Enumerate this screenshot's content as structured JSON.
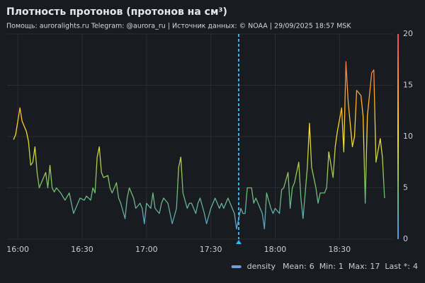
{
  "chart_data": {
    "type": "line",
    "title": "Плотность протонов (протонов на см³)",
    "subtitle": "Помощь: auroralights.ru Telegram: @aurora_ru | Источник данных:  © NOAA | 29/09/2025 18:57 MSK",
    "x": [
      "15:58",
      "15:59",
      "16:01",
      "16:02",
      "16:04",
      "16:05",
      "16:06",
      "16:07",
      "16:08",
      "16:09",
      "16:10",
      "16:11",
      "16:13",
      "16:14",
      "16:15",
      "16:16",
      "16:17",
      "16:18",
      "16:20",
      "16:22",
      "16:24",
      "16:25",
      "16:26",
      "16:28",
      "16:29",
      "16:31",
      "16:32",
      "16:34",
      "16:35",
      "16:36",
      "16:37",
      "16:38",
      "16:39",
      "16:40",
      "16:42",
      "16:43",
      "16:44",
      "16:46",
      "16:47",
      "16:48",
      "16:50",
      "16:51",
      "16:52",
      "16:54",
      "16:55",
      "16:57",
      "16:58",
      "16:59",
      "17:00",
      "17:02",
      "17:03",
      "17:04",
      "17:06",
      "17:07",
      "17:08",
      "17:10",
      "17:11",
      "17:12",
      "17:14",
      "17:15",
      "17:16",
      "17:17",
      "17:19",
      "17:20",
      "17:21",
      "17:23",
      "17:24",
      "17:25",
      "17:27",
      "17:28",
      "17:30",
      "17:31",
      "17:32",
      "17:34",
      "17:35",
      "17:36",
      "17:38",
      "17:39",
      "17:40",
      "17:41",
      "17:42",
      "17:44",
      "17:45",
      "17:46",
      "17:47",
      "17:49",
      "17:50",
      "17:51",
      "17:53",
      "17:54",
      "17:55",
      "17:56",
      "17:58",
      "17:59",
      "18:00",
      "18:02",
      "18:03",
      "18:04",
      "18:06",
      "18:07",
      "18:08",
      "18:09",
      "18:11",
      "18:12",
      "18:13",
      "18:15",
      "18:16",
      "18:17",
      "18:19",
      "18:20",
      "18:21",
      "18:23",
      "18:24",
      "18:25",
      "18:27",
      "18:28",
      "18:29",
      "18:31",
      "18:32",
      "18:33",
      "18:34",
      "18:36",
      "18:37",
      "18:38",
      "18:40",
      "18:41",
      "18:42",
      "18:43",
      "18:45",
      "18:46",
      "18:47",
      "18:49",
      "18:50",
      "18:51"
    ],
    "series": [
      {
        "name": "density",
        "color": "#6e9fd9",
        "values": [
          9.7,
          10.2,
          12.8,
          11.5,
          10.5,
          9.5,
          7.2,
          7.5,
          9,
          6.5,
          5,
          5.5,
          6.5,
          5,
          7.2,
          5,
          4.6,
          5,
          4.5,
          3.8,
          4.5,
          3.5,
          2.5,
          3.5,
          4,
          3.8,
          4.2,
          3.8,
          5,
          4.5,
          8,
          9,
          6.5,
          6,
          6.2,
          5,
          4.5,
          5.5,
          4,
          3.5,
          2,
          4,
          5,
          4,
          3,
          3.5,
          3,
          1.5,
          3.5,
          3,
          4.5,
          3,
          2.5,
          3.5,
          4,
          3.5,
          2.5,
          1.5,
          3,
          7,
          8,
          4.5,
          3,
          3.5,
          3.5,
          2.5,
          3.5,
          4,
          2.5,
          1.5,
          3,
          3.5,
          4,
          3,
          3.5,
          3,
          4,
          3.5,
          3,
          2.5,
          1,
          3,
          2.5,
          2.5,
          5,
          5,
          3.5,
          4,
          3,
          2.5,
          1,
          4.5,
          3,
          2.5,
          3,
          2.5,
          4.8,
          5,
          6.5,
          3,
          5,
          5.5,
          7.5,
          4,
          2,
          7,
          11.3,
          7,
          5,
          3.5,
          4.5,
          4.5,
          5,
          8.5,
          6,
          9,
          10.5,
          12.8,
          8.5,
          17.3,
          13.5,
          9,
          10,
          14.5,
          14,
          12,
          3.5,
          12,
          16.2,
          16.5,
          7.5,
          9.8,
          8,
          4
        ]
      }
    ],
    "gradient_colors": [
      "#5794f2",
      "#73bf69",
      "#fade2a",
      "#ff9830",
      "#f2495c"
    ],
    "xlim": [
      "15:55",
      "18:55"
    ],
    "xticks": [
      "16:00",
      "16:30",
      "17:00",
      "17:30",
      "18:00",
      "18:30"
    ],
    "ylim": [
      0,
      20
    ],
    "yticks": [
      0,
      5,
      10,
      15,
      20
    ],
    "grid": true,
    "annotation_x": "17:43",
    "annotation_color": "#33b5e5",
    "legend_stats": [
      {
        "label": "Mean:",
        "value": 6
      },
      {
        "label": "Min:",
        "value": 1
      },
      {
        "label": "Max:",
        "value": 17
      },
      {
        "label": "Last *:",
        "value": 4
      }
    ]
  }
}
